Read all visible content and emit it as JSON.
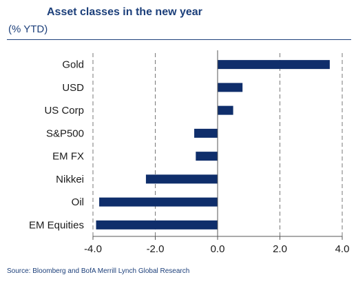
{
  "chart_data": {
    "type": "bar",
    "orientation": "horizontal",
    "title": "Asset classes in the new year",
    "subtitle": "(% YTD)",
    "categories": [
      "Gold",
      "USD",
      "US Corp",
      "S&P500",
      "EM FX",
      "Nikkei",
      "Oil",
      "EM Equities"
    ],
    "values": [
      3.6,
      0.8,
      0.5,
      -0.75,
      -0.7,
      -2.3,
      -3.8,
      -3.9
    ],
    "xlim": [
      -4.0,
      4.0
    ],
    "xticks": [
      "-4.0",
      "-2.0",
      "0.0",
      "2.0",
      "4.0"
    ],
    "xtick_values": [
      -4,
      -2,
      0,
      2,
      4
    ],
    "grid": "vertical dashed",
    "source": "Source: Bloomberg and BofA Merrill Lynch Global Research"
  },
  "colors": {
    "bar": "#0f2e6b",
    "title": "#1c3f7a",
    "grid": "#777777",
    "axis": "#555555"
  }
}
